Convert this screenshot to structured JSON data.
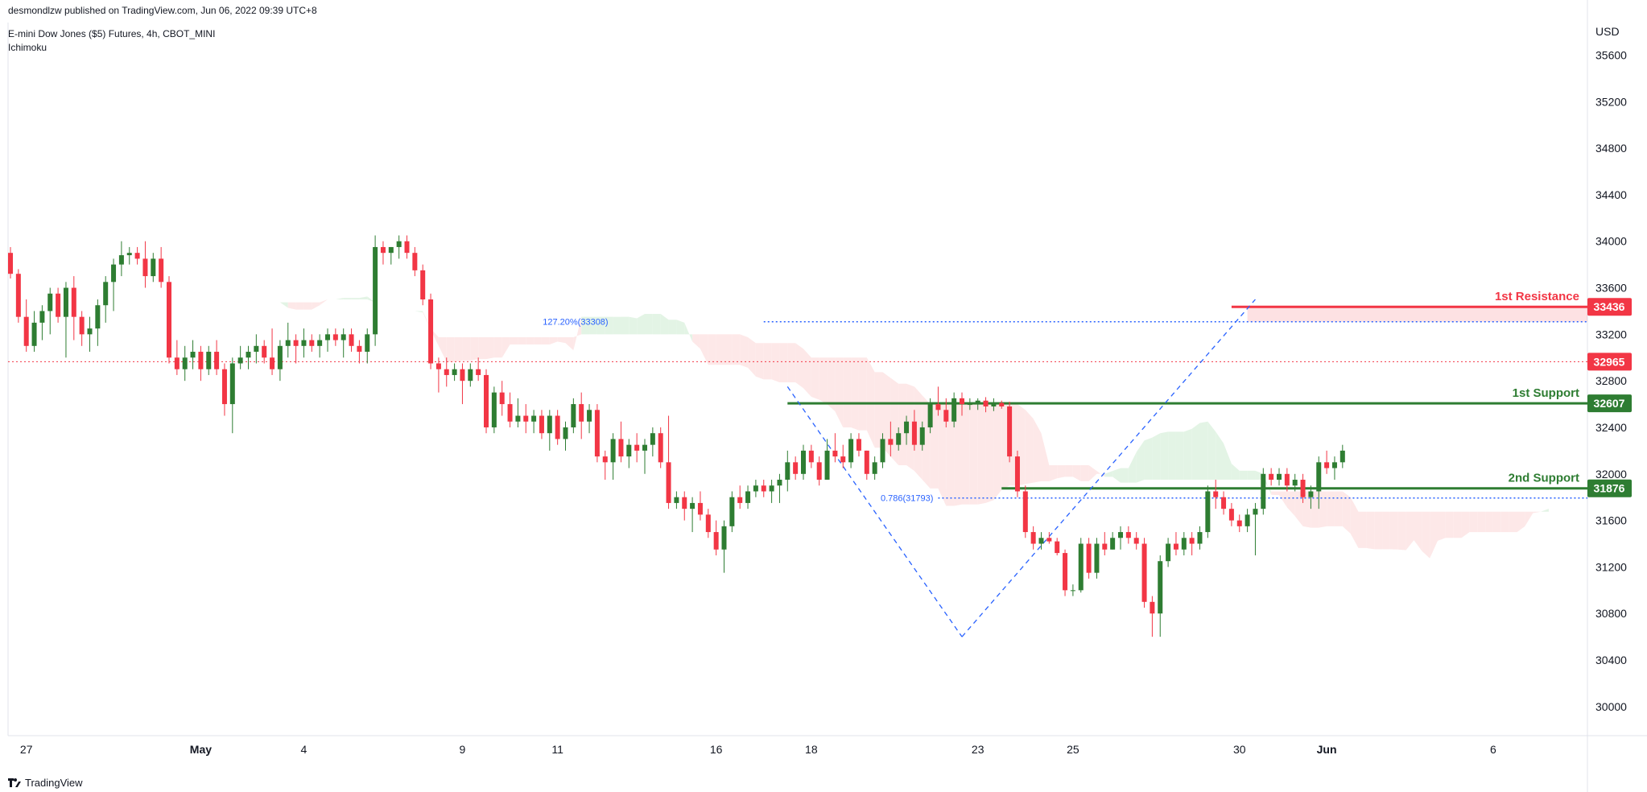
{
  "header": {
    "published": "desmondlzw published on TradingView.com, Jun 06, 2022 09:39 UTC+8",
    "instrument": "E-mini Dow Jones ($5) Futures, 4h, CBOT_MINI",
    "indicator": "Ichimoku"
  },
  "footer": {
    "brand": "TradingView"
  },
  "chart_data": {
    "type": "candlestick",
    "currency": "USD",
    "y_ticks": [
      30000,
      30400,
      30800,
      31200,
      31600,
      32000,
      32400,
      32800,
      33200,
      33600,
      34000,
      34400,
      34800,
      35200,
      35600
    ],
    "ylim": [
      29750,
      35880
    ],
    "x_ticks": [
      {
        "label": "27",
        "i": 2,
        "bold": false
      },
      {
        "label": "May",
        "i": 24,
        "bold": true
      },
      {
        "label": "4",
        "i": 37,
        "bold": false
      },
      {
        "label": "9",
        "i": 57,
        "bold": false
      },
      {
        "label": "11",
        "i": 69,
        "bold": false
      },
      {
        "label": "16",
        "i": 89,
        "bold": false
      },
      {
        "label": "18",
        "i": 101,
        "bold": false
      },
      {
        "label": "23",
        "i": 122,
        "bold": false
      },
      {
        "label": "25",
        "i": 134,
        "bold": false
      },
      {
        "label": "30",
        "i": 155,
        "bold": false
      },
      {
        "label": "Jun",
        "i": 166,
        "bold": true
      },
      {
        "label": "6",
        "i": 187,
        "bold": false
      }
    ],
    "candles": [
      [
        33900,
        33950,
        33680,
        33720
      ],
      [
        33720,
        33760,
        33300,
        33350
      ],
      [
        33350,
        33500,
        33050,
        33100
      ],
      [
        33100,
        33400,
        33050,
        33300
      ],
      [
        33300,
        33450,
        33150,
        33400
      ],
      [
        33400,
        33600,
        33200,
        33550
      ],
      [
        33550,
        33600,
        33300,
        33350
      ],
      [
        33350,
        33650,
        33000,
        33600
      ],
      [
        33600,
        33700,
        33150,
        33350
      ],
      [
        33350,
        33400,
        33100,
        33200
      ],
      [
        33200,
        33350,
        33050,
        33250
      ],
      [
        33250,
        33500,
        33100,
        33450
      ],
      [
        33450,
        33700,
        33300,
        33650
      ],
      [
        33650,
        33850,
        33400,
        33800
      ],
      [
        33800,
        34000,
        33700,
        33880
      ],
      [
        33880,
        33950,
        33800,
        33900
      ],
      [
        33900,
        33950,
        33800,
        33850
      ],
      [
        33850,
        34000,
        33600,
        33700
      ],
      [
        33700,
        33900,
        33650,
        33850
      ],
      [
        33850,
        33950,
        33600,
        33650
      ],
      [
        33650,
        33700,
        32950,
        33000
      ],
      [
        33000,
        33150,
        32850,
        32900
      ],
      [
        32900,
        33100,
        32800,
        33000
      ],
      [
        33000,
        33150,
        32900,
        33050
      ],
      [
        33050,
        33100,
        32800,
        32900
      ],
      [
        32900,
        33100,
        32850,
        33050
      ],
      [
        33050,
        33150,
        32850,
        32900
      ],
      [
        32900,
        32950,
        32500,
        32600
      ],
      [
        32600,
        33000,
        32350,
        32950
      ],
      [
        32950,
        33100,
        32900,
        33000
      ],
      [
        33000,
        33100,
        32900,
        33050
      ],
      [
        33050,
        33200,
        32950,
        33100
      ],
      [
        33100,
        33150,
        32950,
        33000
      ],
      [
        33000,
        33250,
        32850,
        32900
      ],
      [
        32900,
        33150,
        32800,
        33100
      ],
      [
        33100,
        33300,
        33000,
        33150
      ],
      [
        33150,
        33200,
        32950,
        33100
      ],
      [
        33100,
        33250,
        33000,
        33150
      ],
      [
        33150,
        33200,
        33050,
        33100
      ],
      [
        33100,
        33200,
        33000,
        33150
      ],
      [
        33150,
        33250,
        33050,
        33200
      ],
      [
        33200,
        33250,
        33100,
        33150
      ],
      [
        33150,
        33250,
        33000,
        33200
      ],
      [
        33200,
        33250,
        33050,
        33100
      ],
      [
        33100,
        33150,
        32950,
        33050
      ],
      [
        33050,
        33250,
        32950,
        33200
      ],
      [
        33200,
        34050,
        33100,
        33950
      ],
      [
        33950,
        34000,
        33800,
        33900
      ],
      [
        33900,
        33950,
        33800,
        33950
      ],
      [
        33950,
        34050,
        33850,
        34000
      ],
      [
        34000,
        34050,
        33850,
        33900
      ],
      [
        33900,
        33950,
        33700,
        33750
      ],
      [
        33750,
        33800,
        33450,
        33500
      ],
      [
        33500,
        33550,
        32900,
        32950
      ],
      [
        32950,
        33000,
        32700,
        32900
      ],
      [
        32900,
        33000,
        32750,
        32850
      ],
      [
        32850,
        32950,
        32800,
        32900
      ],
      [
        32900,
        32950,
        32600,
        32800
      ],
      [
        32800,
        32950,
        32750,
        32900
      ],
      [
        32900,
        33000,
        32800,
        32850
      ],
      [
        32850,
        32900,
        32350,
        32400
      ],
      [
        32400,
        32750,
        32350,
        32700
      ],
      [
        32700,
        32800,
        32500,
        32600
      ],
      [
        32600,
        32700,
        32400,
        32450
      ],
      [
        32450,
        32650,
        32400,
        32500
      ],
      [
        32500,
        32600,
        32350,
        32450
      ],
      [
        32450,
        32550,
        32350,
        32500
      ],
      [
        32500,
        32550,
        32300,
        32350
      ],
      [
        32350,
        32550,
        32200,
        32500
      ],
      [
        32500,
        32550,
        32250,
        32300
      ],
      [
        32300,
        32450,
        32200,
        32400
      ],
      [
        32400,
        32650,
        32350,
        32600
      ],
      [
        32600,
        32700,
        32300,
        32450
      ],
      [
        32450,
        32600,
        32350,
        32550
      ],
      [
        32550,
        32600,
        32100,
        32150
      ],
      [
        32150,
        32200,
        31950,
        32100
      ],
      [
        32100,
        32350,
        31950,
        32300
      ],
      [
        32300,
        32450,
        32100,
        32150
      ],
      [
        32150,
        32300,
        32050,
        32250
      ],
      [
        32250,
        32350,
        32100,
        32200
      ],
      [
        32200,
        32300,
        32000,
        32250
      ],
      [
        32250,
        32400,
        32150,
        32350
      ],
      [
        32350,
        32400,
        32050,
        32100
      ],
      [
        32100,
        32500,
        31700,
        31750
      ],
      [
        31750,
        31850,
        31700,
        31800
      ],
      [
        31800,
        31850,
        31600,
        31700
      ],
      [
        31700,
        31800,
        31500,
        31750
      ],
      [
        31750,
        31850,
        31600,
        31650
      ],
      [
        31650,
        31700,
        31450,
        31500
      ],
      [
        31500,
        31600,
        31300,
        31350
      ],
      [
        31350,
        31600,
        31150,
        31550
      ],
      [
        31550,
        31850,
        31500,
        31800
      ],
      [
        31800,
        31900,
        31700,
        31750
      ],
      [
        31750,
        31900,
        31700,
        31850
      ],
      [
        31850,
        31950,
        31800,
        31900
      ],
      [
        31900,
        31950,
        31800,
        31850
      ],
      [
        31850,
        31950,
        31750,
        31900
      ],
      [
        31900,
        32000,
        31750,
        31950
      ],
      [
        31950,
        32200,
        31850,
        32100
      ],
      [
        32100,
        32150,
        31950,
        32000
      ],
      [
        32000,
        32250,
        31950,
        32200
      ],
      [
        32200,
        32250,
        32050,
        32100
      ],
      [
        32100,
        32150,
        31900,
        31950
      ],
      [
        31950,
        32300,
        31950,
        32200
      ],
      [
        32200,
        32350,
        32100,
        32150
      ],
      [
        32150,
        32250,
        32050,
        32100
      ],
      [
        32100,
        32350,
        32050,
        32300
      ],
      [
        32300,
        32350,
        32150,
        32200
      ],
      [
        32200,
        32200,
        31950,
        32000
      ],
      [
        32000,
        32150,
        31950,
        32100
      ],
      [
        32100,
        32350,
        32050,
        32300
      ],
      [
        32300,
        32450,
        32150,
        32250
      ],
      [
        32250,
        32400,
        32200,
        32350
      ],
      [
        32350,
        32500,
        32250,
        32450
      ],
      [
        32450,
        32550,
        32200,
        32250
      ],
      [
        32250,
        32450,
        32200,
        32400
      ],
      [
        32400,
        32650,
        32350,
        32600
      ],
      [
        32600,
        32750,
        32500,
        32550
      ],
      [
        32550,
        32650,
        32400,
        32450
      ],
      [
        32450,
        32700,
        32400,
        32650
      ],
      [
        32650,
        32700,
        32500,
        32600
      ],
      [
        32600,
        32650,
        32550,
        32600
      ],
      [
        32600,
        32650,
        32550,
        32630
      ],
      [
        32630,
        32660,
        32530,
        32580
      ],
      [
        32580,
        32650,
        32540,
        32610
      ],
      [
        32610,
        32630,
        32560,
        32580
      ],
      [
        32580,
        32620,
        32100,
        32150
      ],
      [
        32150,
        32200,
        31800,
        31850
      ],
      [
        31850,
        31900,
        31450,
        31500
      ],
      [
        31500,
        31550,
        31350,
        31400
      ],
      [
        31400,
        31500,
        31350,
        31450
      ],
      [
        31450,
        31500,
        31400,
        31420
      ],
      [
        31420,
        31450,
        31300,
        31320
      ],
      [
        31320,
        31350,
        30950,
        31000
      ],
      [
        31000,
        31050,
        30950,
        31000
      ],
      [
        31000,
        31450,
        30980,
        31400
      ],
      [
        31400,
        31450,
        31100,
        31150
      ],
      [
        31150,
        31450,
        31100,
        31400
      ],
      [
        31400,
        31500,
        31300,
        31350
      ],
      [
        31350,
        31500,
        31350,
        31450
      ],
      [
        31450,
        31550,
        31350,
        31500
      ],
      [
        31500,
        31550,
        31400,
        31450
      ],
      [
        31450,
        31500,
        31350,
        31400
      ],
      [
        31400,
        31450,
        30850,
        30900
      ],
      [
        30900,
        30950,
        30600,
        30800
      ],
      [
        30800,
        31300,
        30600,
        31250
      ],
      [
        31250,
        31450,
        31200,
        31400
      ],
      [
        31400,
        31500,
        31300,
        31350
      ],
      [
        31350,
        31500,
        31300,
        31450
      ],
      [
        31450,
        31500,
        31300,
        31400
      ],
      [
        31400,
        31550,
        31350,
        31500
      ],
      [
        31500,
        31900,
        31450,
        31850
      ],
      [
        31850,
        31950,
        31700,
        31800
      ],
      [
        31800,
        31850,
        31650,
        31700
      ],
      [
        31700,
        31750,
        31550,
        31600
      ],
      [
        31600,
        31650,
        31500,
        31550
      ],
      [
        31550,
        31700,
        31500,
        31650
      ],
      [
        31650,
        31750,
        31300,
        31700
      ],
      [
        31700,
        32050,
        31650,
        32000
      ],
      [
        32000,
        32050,
        31900,
        31950
      ],
      [
        31950,
        32050,
        31900,
        32000
      ],
      [
        32000,
        32050,
        31850,
        31900
      ],
      [
        31900,
        32000,
        31850,
        31950
      ],
      [
        31950,
        32000,
        31750,
        31800
      ],
      [
        31800,
        31900,
        31700,
        31850
      ],
      [
        31850,
        32150,
        31700,
        32100
      ],
      [
        32100,
        32200,
        32000,
        32050
      ],
      [
        32050,
        32150,
        31950,
        32100
      ],
      [
        32100,
        32250,
        32050,
        32200
      ]
    ],
    "price_levels": [
      {
        "name": "1st Resistance",
        "value": 33436,
        "label": "33436",
        "color": "#f23645"
      },
      {
        "name": "current",
        "value": 32965,
        "label": "32965",
        "color": "#f23645"
      },
      {
        "name": "1st Support",
        "value": 32607,
        "label": "32607",
        "color": "#2e7d32"
      },
      {
        "name": "2nd Support",
        "value": 31876,
        "label": "31876",
        "color": "#2e7d32"
      }
    ],
    "fib_annotations": [
      {
        "label": "127.20%(33308)",
        "value": 33308
      },
      {
        "label": "0.786(31793)",
        "value": 31793
      }
    ],
    "colors": {
      "up": "#2e7d32",
      "down": "#f23645",
      "resistance": "#f23645",
      "support": "#2e7d32",
      "fib": "#2962ff",
      "cloud_bull": "#e3f4e5",
      "cloud_bear": "#fde8e8"
    }
  }
}
